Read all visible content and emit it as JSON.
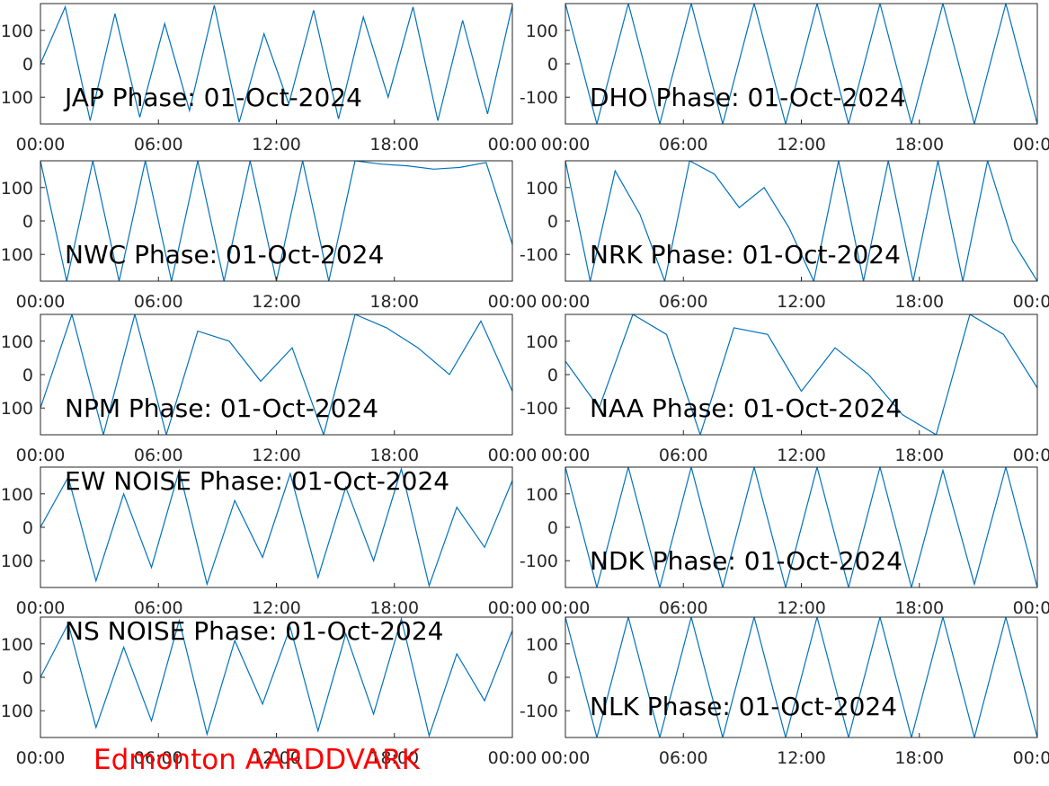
{
  "figure": {
    "footer": "Edmonton AARDDVARK",
    "footer_color": "#ff0000",
    "line_color": "#0072bd"
  },
  "chart_data": [
    {
      "type": "line",
      "title": "JAP Phase: 01-Oct-2024",
      "xticks": [
        "00:00",
        "06:00",
        "12:00",
        "18:00",
        "00:00"
      ],
      "yticks": [
        "100",
        "0",
        "100"
      ],
      "xlim": [
        0,
        24
      ],
      "ylim": [
        -180,
        180
      ],
      "series": [
        {
          "values": [
            0,
            170,
            -170,
            150,
            -160,
            120,
            -140,
            175,
            -175,
            90,
            -120,
            160,
            -165,
            140,
            -100,
            170,
            -170,
            130,
            -150,
            175
          ]
        }
      ]
    },
    {
      "type": "line",
      "title": "DHO Phase: 01-Oct-2024",
      "xticks": [
        "00:00",
        "06:00",
        "12:00",
        "18:00",
        "00:00"
      ],
      "yticks": [
        "100",
        "0",
        "-100"
      ],
      "xlim": [
        0,
        24
      ],
      "ylim": [
        -180,
        180
      ],
      "series": [
        {
          "values": [
            180,
            -180,
            180,
            -180,
            180,
            -180,
            180,
            -180,
            180,
            -180,
            180,
            -180,
            180,
            -180,
            180,
            -180
          ]
        }
      ]
    },
    {
      "type": "line",
      "title": "NWC Phase: 01-Oct-2024",
      "xticks": [
        "00:00",
        "06:00",
        "12:00",
        "18:00",
        "00:00"
      ],
      "yticks": [
        "100",
        "0",
        "100"
      ],
      "xlim": [
        0,
        24
      ],
      "ylim": [
        -180,
        180
      ],
      "series": [
        {
          "values": [
            180,
            -180,
            180,
            -180,
            180,
            -180,
            180,
            -180,
            180,
            -180,
            180,
            -180,
            180,
            170,
            165,
            155,
            160,
            175,
            -70
          ]
        }
      ]
    },
    {
      "type": "line",
      "title": "NRK Phase: 01-Oct-2024",
      "xticks": [
        "00:00",
        "06:00",
        "12:00",
        "18:00",
        "00:00"
      ],
      "yticks": [
        "100",
        "0",
        "-100"
      ],
      "xlim": [
        0,
        24
      ],
      "ylim": [
        -180,
        180
      ],
      "series": [
        {
          "values": [
            180,
            -180,
            150,
            20,
            -180,
            180,
            140,
            40,
            100,
            -20,
            -180,
            180,
            -180,
            180,
            -180,
            180,
            -180,
            180,
            -60,
            -180
          ]
        }
      ]
    },
    {
      "type": "line",
      "title": "NPM Phase: 01-Oct-2024",
      "xticks": [
        "00:00",
        "06:00",
        "12:00",
        "18:00",
        "00:00"
      ],
      "yticks": [
        "100",
        "0",
        "100"
      ],
      "xlim": [
        0,
        24
      ],
      "ylim": [
        -180,
        180
      ],
      "series": [
        {
          "values": [
            -100,
            180,
            -180,
            180,
            -180,
            130,
            100,
            -20,
            80,
            -180,
            180,
            140,
            80,
            0,
            160,
            -50
          ]
        }
      ]
    },
    {
      "type": "line",
      "title": "NAA Phase: 01-Oct-2024",
      "xticks": [
        "00:00",
        "06:00",
        "12:00",
        "18:00",
        "00:00"
      ],
      "yticks": [
        "100",
        "0",
        "-100"
      ],
      "xlim": [
        0,
        24
      ],
      "ylim": [
        -180,
        180
      ],
      "series": [
        {
          "values": [
            40,
            -100,
            180,
            120,
            -180,
            140,
            120,
            -50,
            80,
            0,
            -120,
            -180,
            180,
            120,
            -40
          ]
        }
      ]
    },
    {
      "type": "line",
      "title": "EW NOISE Phase: 01-Oct-2024",
      "xticks": [
        "00:00",
        "06:00",
        "12:00",
        "18:00",
        "00:00"
      ],
      "yticks": [
        "100",
        "0",
        "100"
      ],
      "xlim": [
        0,
        24
      ],
      "ylim": [
        -180,
        180
      ],
      "series": [
        {
          "values": [
            0,
            150,
            -160,
            100,
            -120,
            170,
            -170,
            80,
            -90,
            160,
            -150,
            120,
            -100,
            175,
            -175,
            60,
            -60,
            140
          ]
        }
      ]
    },
    {
      "type": "line",
      "title": "NDK Phase: 01-Oct-2024",
      "xticks": [
        "00:00",
        "06:00",
        "12:00",
        "18:00",
        "00:00"
      ],
      "yticks": [
        "100",
        "0",
        "-100"
      ],
      "xlim": [
        0,
        24
      ],
      "ylim": [
        -180,
        180
      ],
      "series": [
        {
          "values": [
            180,
            -180,
            180,
            -180,
            180,
            -180,
            180,
            -180,
            180,
            -180,
            180,
            -180,
            170,
            -170,
            180,
            -180
          ]
        }
      ]
    },
    {
      "type": "line",
      "title": "NS NOISE Phase: 01-Oct-2024",
      "xticks": [
        "00:00",
        "06:00",
        "12:00",
        "18:00",
        "00:00"
      ],
      "yticks": [
        "100",
        "0",
        "100"
      ],
      "xlim": [
        0,
        24
      ],
      "ylim": [
        -180,
        180
      ],
      "series": [
        {
          "values": [
            0,
            160,
            -150,
            90,
            -130,
            170,
            -170,
            110,
            -80,
            150,
            -160,
            130,
            -110,
            175,
            -175,
            70,
            -70,
            140
          ]
        }
      ]
    },
    {
      "type": "line",
      "title": "NLK Phase: 01-Oct-2024",
      "xticks": [
        "00:00",
        "06:00",
        "12:00",
        "18:00",
        "00:00"
      ],
      "yticks": [
        "100",
        "0",
        "-100"
      ],
      "xlim": [
        0,
        24
      ],
      "ylim": [
        -180,
        180
      ],
      "series": [
        {
          "values": [
            180,
            -180,
            180,
            -180,
            180,
            -180,
            180,
            -180,
            180,
            -180,
            180,
            -180,
            180,
            -180,
            180,
            -180
          ]
        }
      ]
    }
  ]
}
